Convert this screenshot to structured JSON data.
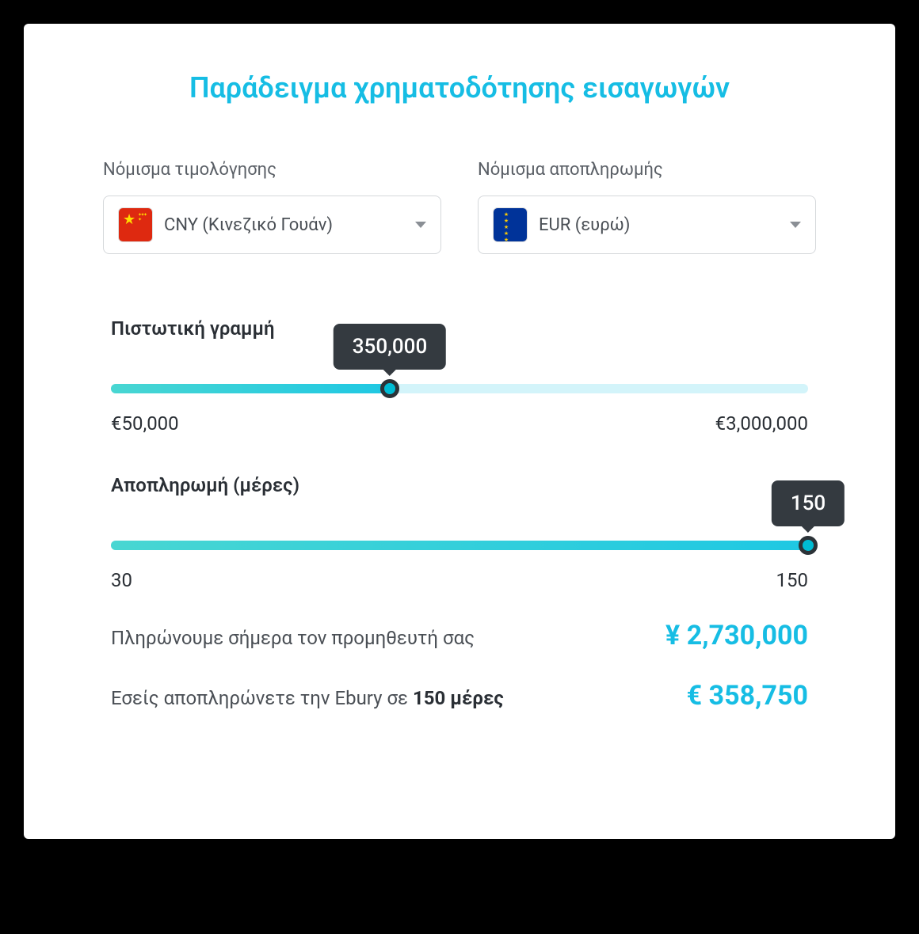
{
  "colors": {
    "accent": "#16bde4",
    "slider_fill_start": "#48d6d2",
    "slider_fill_end": "#1fc8e3",
    "slider_empty": "#d3f4fa",
    "tooltip_bg": "#343a40",
    "text_muted": "#5a5f66",
    "text_body": "#4a4f55"
  },
  "title": "Παράδειγμα χρηματοδότησης εισαγωγών",
  "invoice_currency": {
    "label": "Νόμισμα τιμολόγησης",
    "value": "CNY (Κινεζικό Γουάν)",
    "flag": "cn"
  },
  "repayment_currency": {
    "label": "Νόμισμα αποπληρωμής",
    "value": "EUR (ευρώ)",
    "flag": "eu"
  },
  "credit_line": {
    "title": "Πιστωτική γραμμή",
    "tooltip": "350,000",
    "min_label": "€50,000",
    "max_label": "€3,000,000",
    "min": 50000,
    "max": 3000000,
    "value": 350000,
    "fill_percent": 40,
    "empty_color": "#d3f4fa"
  },
  "repayment_days": {
    "title": "Αποπληρωμή (μέρες)",
    "tooltip": "150",
    "min_label": "30",
    "max_label": "150",
    "min": 30,
    "max": 150,
    "value": 150,
    "fill_percent": 100,
    "empty_color": "#d3f4fa"
  },
  "summary": {
    "pay_supplier_label": "Πληρώνουμε σήμερα τον προμηθευτή σας",
    "pay_supplier_value": "¥ 2,730,000",
    "repay_label_pre": "Εσείς αποπληρώνετε την Ebury σε ",
    "repay_label_bold": "150 μέρες",
    "repay_value": "€ 358,750"
  }
}
